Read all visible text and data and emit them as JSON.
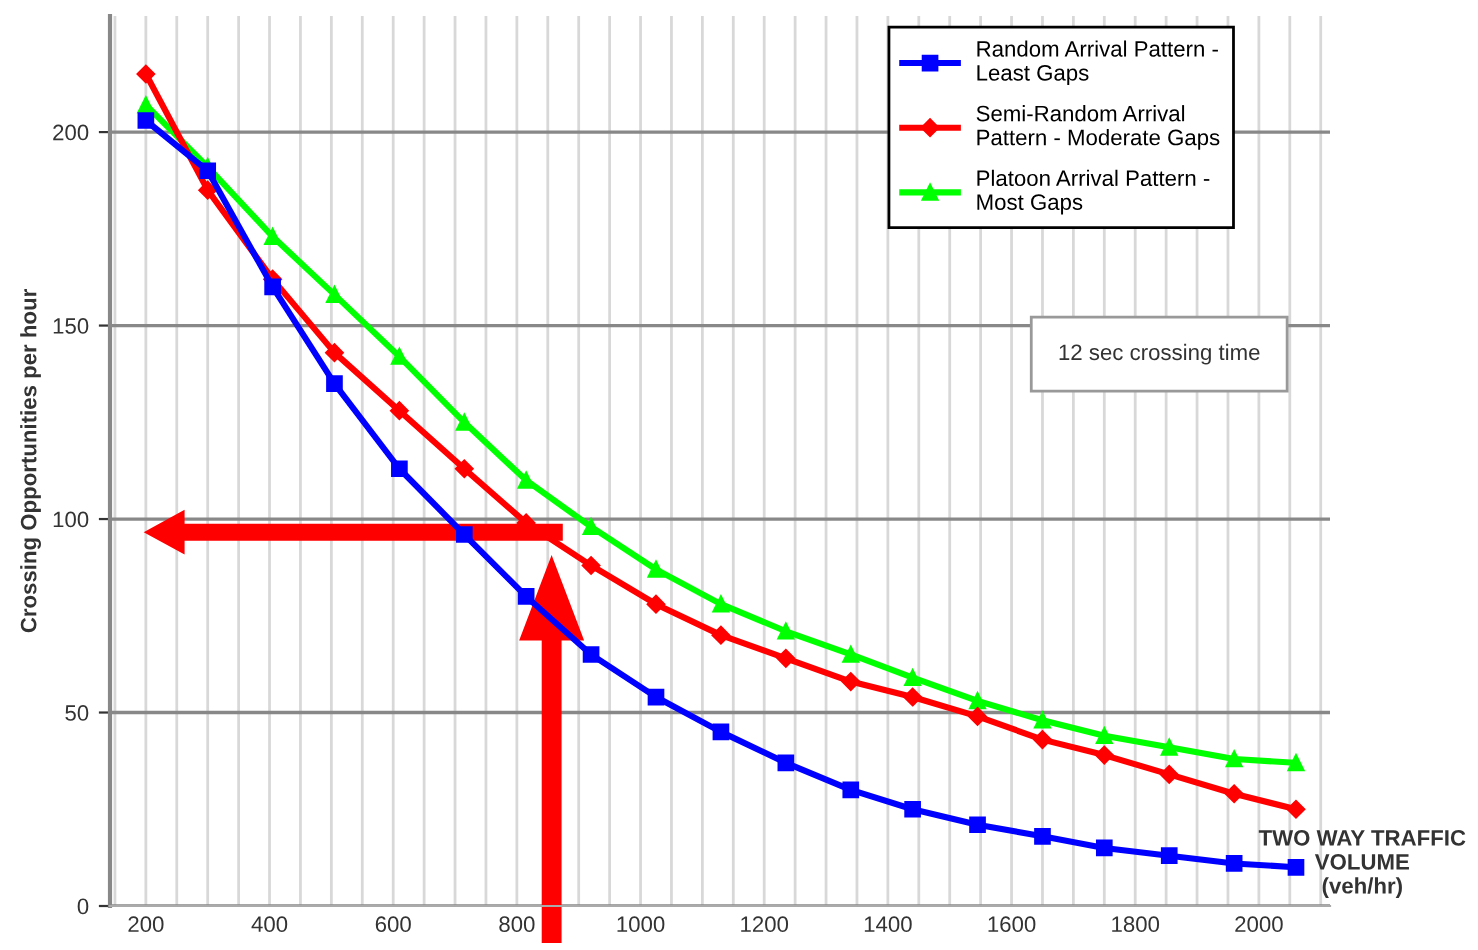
{
  "chart_data": {
    "type": "line",
    "xlabel": "TWO WAY TRAFFIC\nVOLUME\n(veh/hr)",
    "ylabel": "Crossing Opportunities per hour",
    "x": [
      200,
      300,
      405,
      505,
      610,
      715,
      815,
      920,
      1025,
      1130,
      1235,
      1340,
      1440,
      1545,
      1650,
      1750,
      1855,
      1960,
      2060
    ],
    "series": [
      {
        "name": "Random Arrival Pattern -\nLeast Gaps",
        "color": "#0000ff",
        "marker": "square",
        "values": [
          203,
          190,
          160,
          135,
          113,
          96,
          80,
          65,
          54,
          45,
          37,
          30,
          25,
          21,
          18,
          15,
          13,
          11,
          10
        ]
      },
      {
        "name": "Semi-Random Arrival\nPattern - Moderate Gaps",
        "color": "#ff0000",
        "marker": "diamond",
        "values": [
          215,
          185,
          162,
          143,
          128,
          113,
          99,
          88,
          78,
          70,
          64,
          58,
          54,
          49,
          43,
          39,
          34,
          29,
          25
        ]
      },
      {
        "name": "Platoon Arrival Pattern -\nMost Gaps",
        "color": "#00ff00",
        "marker": "triangle",
        "values": [
          207,
          191,
          173,
          158,
          142,
          125,
          110,
          98,
          87,
          78,
          71,
          65,
          59,
          53,
          48,
          44,
          41,
          38,
          37
        ]
      }
    ],
    "annotations": [
      "12 sec crossing time"
    ],
    "xlim": [
      142,
      2115
    ],
    "xticks": [
      {
        "value": 150,
        "label": null
      },
      200,
      {
        "value": 250,
        "label": null
      },
      {
        "value": 300,
        "label": null
      },
      {
        "value": 350,
        "label": null
      },
      400,
      {
        "value": 450,
        "label": null
      },
      {
        "value": 500,
        "label": null
      },
      {
        "value": 550,
        "label": null
      },
      600,
      {
        "value": 650,
        "label": null
      },
      {
        "value": 700,
        "label": null
      },
      {
        "value": 750,
        "label": null
      },
      800,
      {
        "value": 850,
        "label": null
      },
      {
        "value": 900,
        "label": null
      },
      {
        "value": 950,
        "label": null
      },
      1000,
      {
        "value": 1050,
        "label": null
      },
      {
        "value": 1100,
        "label": null
      },
      {
        "value": 1150,
        "label": null
      },
      1200,
      {
        "value": 1250,
        "label": null
      },
      {
        "value": 1300,
        "label": null
      },
      {
        "value": 1350,
        "label": null
      },
      1400,
      {
        "value": 1450,
        "label": null
      },
      {
        "value": 1500,
        "label": null
      },
      {
        "value": 1550,
        "label": null
      },
      1600,
      {
        "value": 1650,
        "label": null
      },
      {
        "value": 1700,
        "label": null
      },
      {
        "value": 1750,
        "label": null
      },
      1800,
      {
        "value": 1850,
        "label": null
      },
      {
        "value": 1900,
        "label": null
      },
      {
        "value": 1950,
        "label": null
      },
      2000,
      {
        "value": 2050,
        "label": null
      },
      {
        "value": 2100,
        "label": null
      }
    ],
    "ylim": [
      0,
      230
    ],
    "yticks": [
      0,
      50,
      100,
      150,
      200
    ],
    "grid": true,
    "legend": "top right",
    "line_style": "solid"
  }
}
